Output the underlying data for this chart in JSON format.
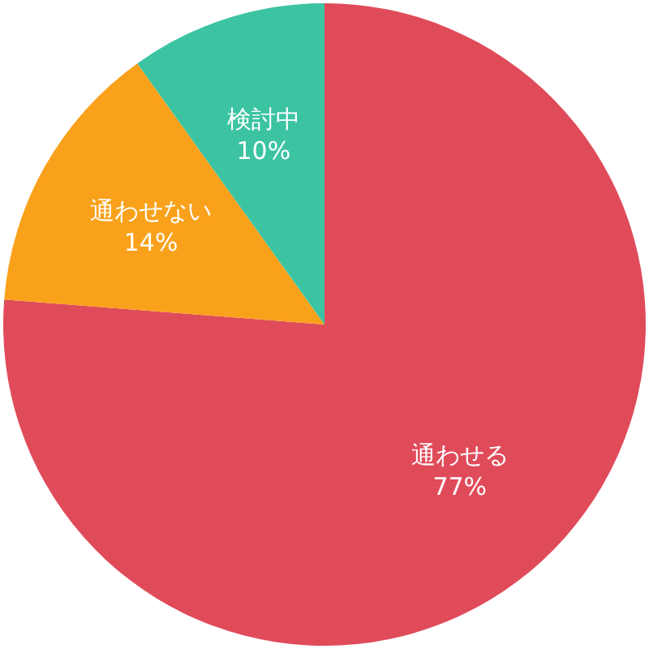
{
  "chart_data": {
    "type": "pie",
    "categories": [
      "通わせる",
      "通わせない",
      "検討中"
    ],
    "values": [
      77,
      14,
      10
    ],
    "colors": [
      "#e04b5a",
      "#f9a11b",
      "#3cc4a2"
    ],
    "value_labels": [
      "77%",
      "14%",
      "10%"
    ]
  }
}
